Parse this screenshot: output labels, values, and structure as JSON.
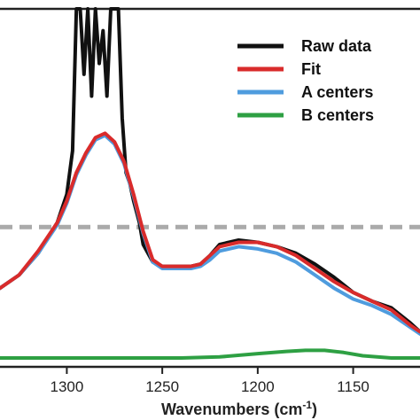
{
  "chart_data": {
    "type": "line",
    "title": "",
    "xlabel": "Wavenumbers (cm",
    "xlabel_sup": "-1",
    "xlabel_close": ")",
    "ylabel": "",
    "xlim": [
      1335,
      1115
    ],
    "ylim": [
      0,
      1.6
    ],
    "x_ticks": [
      1300,
      1250,
      1200,
      1150
    ],
    "x_tick_labels": [
      "1300",
      "1250",
      "1200",
      "1150"
    ],
    "grid": false,
    "legend_position": "top-right",
    "reference_line": {
      "y": 0.6,
      "color": "#aaaaaa",
      "style": "dashed"
    },
    "series": [
      {
        "name": "Raw data",
        "color": "#111111",
        "x": [
          1335,
          1325,
          1315,
          1305,
          1300,
          1297,
          1295,
          1293,
          1291,
          1289,
          1287,
          1285,
          1283,
          1281,
          1279,
          1277,
          1275,
          1273,
          1271,
          1269,
          1267,
          1265,
          1262,
          1260,
          1255,
          1250,
          1245,
          1240,
          1235,
          1230,
          1225,
          1220,
          1210,
          1200,
          1190,
          1180,
          1170,
          1160,
          1150,
          1140,
          1130,
          1120,
          1115
        ],
        "y": [
          0.32,
          0.38,
          0.48,
          0.62,
          0.75,
          0.95,
          1.6,
          1.6,
          1.3,
          1.6,
          1.2,
          1.6,
          1.35,
          1.5,
          1.2,
          1.6,
          1.6,
          1.6,
          1.1,
          0.85,
          0.8,
          0.72,
          0.62,
          0.52,
          0.44,
          0.42,
          0.42,
          0.42,
          0.42,
          0.43,
          0.47,
          0.52,
          0.54,
          0.53,
          0.51,
          0.48,
          0.43,
          0.37,
          0.3,
          0.26,
          0.23,
          0.16,
          0.12
        ]
      },
      {
        "name": "Fit",
        "color": "#d92b2b",
        "x": [
          1335,
          1325,
          1315,
          1305,
          1300,
          1295,
          1290,
          1285,
          1280,
          1275,
          1270,
          1265,
          1260,
          1255,
          1250,
          1245,
          1240,
          1235,
          1230,
          1225,
          1220,
          1210,
          1200,
          1190,
          1180,
          1170,
          1160,
          1150,
          1140,
          1130,
          1120,
          1115
        ],
        "y": [
          0.32,
          0.38,
          0.49,
          0.62,
          0.72,
          0.85,
          0.94,
          1.01,
          1.03,
          0.99,
          0.9,
          0.75,
          0.58,
          0.45,
          0.42,
          0.42,
          0.42,
          0.42,
          0.43,
          0.47,
          0.51,
          0.53,
          0.53,
          0.51,
          0.47,
          0.41,
          0.35,
          0.3,
          0.26,
          0.22,
          0.15,
          0.12
        ]
      },
      {
        "name": "A centers",
        "color": "#4f9cde",
        "x": [
          1335,
          1325,
          1315,
          1305,
          1300,
          1295,
          1290,
          1285,
          1280,
          1275,
          1270,
          1265,
          1260,
          1255,
          1250,
          1245,
          1240,
          1235,
          1230,
          1225,
          1220,
          1210,
          1200,
          1190,
          1180,
          1170,
          1160,
          1150,
          1140,
          1130,
          1120,
          1115
        ],
        "y": [
          0.32,
          0.38,
          0.48,
          0.61,
          0.71,
          0.84,
          0.93,
          1.0,
          1.02,
          0.98,
          0.89,
          0.74,
          0.57,
          0.44,
          0.41,
          0.41,
          0.41,
          0.41,
          0.42,
          0.45,
          0.49,
          0.51,
          0.5,
          0.48,
          0.44,
          0.38,
          0.32,
          0.27,
          0.24,
          0.2,
          0.14,
          0.11
        ]
      },
      {
        "name": "B centers",
        "color": "#2ea043",
        "x": [
          1335,
          1300,
          1260,
          1240,
          1220,
          1200,
          1185,
          1175,
          1165,
          1155,
          1145,
          1130,
          1115
        ],
        "y": [
          0.0,
          0.0,
          0.0,
          0.0,
          0.005,
          0.02,
          0.03,
          0.035,
          0.035,
          0.025,
          0.01,
          0.0,
          0.0
        ]
      }
    ]
  }
}
